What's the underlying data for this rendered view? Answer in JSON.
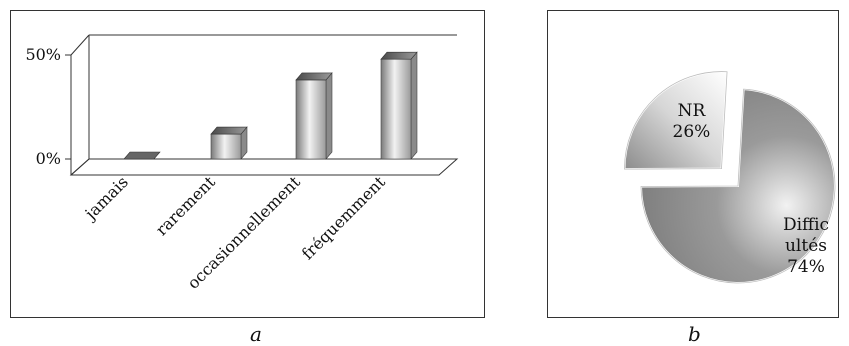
{
  "chart_data": [
    {
      "type": "bar",
      "categories": [
        "jamais",
        "rarement",
        "occasionnellement",
        "fréquemment"
      ],
      "values": [
        0,
        12,
        38,
        48
      ],
      "unit": "%",
      "ylim": [
        0,
        50
      ],
      "yticks": [
        "0%",
        "50%"
      ],
      "style": "3d-cylinder",
      "colors": {
        "bar": "#bdbdbd",
        "floor": "#ffffff",
        "edge": "#333333"
      },
      "caption": "a"
    },
    {
      "type": "pie",
      "slices": [
        {
          "label_lines": [
            "NR",
            "26%"
          ],
          "value": 26,
          "exploded": true
        },
        {
          "label_lines": [
            "Diffic",
            "ultés",
            "74%"
          ],
          "value": 74,
          "exploded": false
        }
      ],
      "colors": {
        "slice": "#8a8a8a",
        "slice_light": "#f4f4f4"
      },
      "caption": "b"
    }
  ]
}
